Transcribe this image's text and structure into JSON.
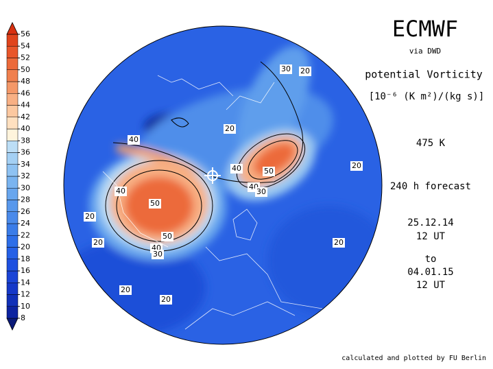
{
  "header": {
    "title": "ECMWF",
    "source": "via DWD",
    "quantity": "potential Vorticity",
    "unit": "[10⁻⁶ (K m²)/(kg s)]",
    "level": "475 K",
    "forecast": "240 h forecast",
    "start_date": "25.12.14",
    "start_time": "12 UT",
    "to": "to",
    "end_date": "04.01.15",
    "end_time": "12 UT"
  },
  "footer": "calculated and plotted by FU Berlin",
  "colorbar": {
    "levels": [
      8,
      10,
      12,
      14,
      16,
      18,
      20,
      22,
      24,
      26,
      28,
      30,
      32,
      34,
      36,
      38,
      40,
      42,
      44,
      46,
      48,
      50,
      52,
      54,
      56
    ],
    "colors": [
      "#0a1a78",
      "#0c23a0",
      "#1030b8",
      "#1538c8",
      "#1a44d6",
      "#1e50e0",
      "#2560e6",
      "#2d6ee8",
      "#3a7ce8",
      "#4a8aea",
      "#5898ec",
      "#68a6ee",
      "#7ab4f0",
      "#8ec2f2",
      "#a4d0f4",
      "#bcdef6",
      "#fff4dc",
      "#ffe0c0",
      "#fcc8a0",
      "#f8b084",
      "#f49868",
      "#f0804e",
      "#ec6a3a",
      "#e8562a",
      "#e0441c",
      "#d83010"
    ]
  },
  "map": {
    "contour_labels": [
      30,
      20,
      20,
      40,
      40,
      50,
      40,
      30,
      20,
      40,
      50,
      20,
      50,
      20,
      40,
      30,
      20,
      20,
      20
    ]
  }
}
